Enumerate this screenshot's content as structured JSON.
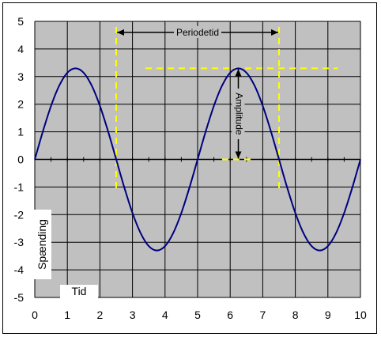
{
  "chart_data": {
    "type": "line",
    "xlim": [
      0,
      10
    ],
    "ylim": [
      -5,
      5
    ],
    "x_ticks": [
      "0",
      "1",
      "2",
      "3",
      "4",
      "5",
      "6",
      "7",
      "8",
      "9",
      "10"
    ],
    "y_ticks": [
      "5",
      "4",
      "3",
      "2",
      "1",
      "0",
      "-1",
      "-2",
      "-3",
      "-4",
      "-5"
    ],
    "xlabel": "Tid",
    "ylabel": "Spænding",
    "grid": true,
    "plot_background": "#c0c0c0",
    "series": [
      {
        "color": "#000080",
        "x": [
          0,
          0.25,
          0.5,
          0.75,
          1.0,
          1.25,
          1.5,
          1.75,
          2.0,
          2.25,
          2.5,
          2.75,
          3.0,
          3.25,
          3.5,
          3.75,
          4.0,
          4.25,
          4.5,
          4.75,
          5.0,
          5.25,
          5.5,
          5.75,
          6.0,
          6.25,
          6.5,
          6.75,
          7.0,
          7.25,
          7.5,
          7.75,
          8.0,
          8.25,
          8.5,
          8.75,
          9.0,
          9.25,
          9.5,
          9.75,
          10.0
        ],
        "y": [
          0,
          1.02,
          1.94,
          2.67,
          3.14,
          3.3,
          3.14,
          2.67,
          1.94,
          1.02,
          0,
          -1.02,
          -1.94,
          -2.67,
          -3.14,
          -3.3,
          -3.14,
          -2.67,
          -1.94,
          -1.02,
          0,
          1.02,
          1.94,
          2.67,
          3.14,
          3.3,
          3.14,
          2.67,
          1.94,
          1.02,
          0,
          -1.02,
          -1.94,
          -2.67,
          -3.14,
          -3.3,
          -3.14,
          -2.67,
          -1.94,
          -1.02,
          0
        ]
      }
    ],
    "annotations": {
      "color": "#ffff00",
      "period_label": "Periodetid",
      "period_from": 2.5,
      "period_to": 7.5,
      "amplitude_label": "Amplitude",
      "amplitude_at": 6.25,
      "amplitude_value": 3.3
    }
  }
}
